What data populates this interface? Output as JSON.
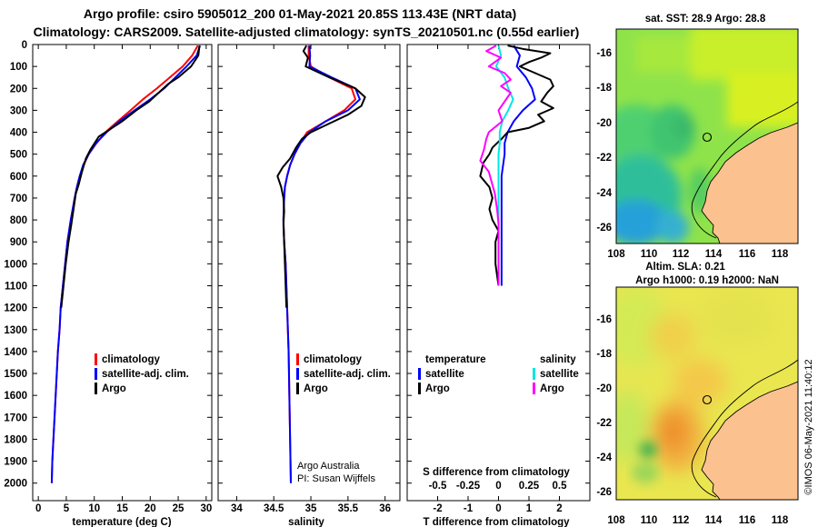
{
  "title": {
    "line1": "Argo profile: csiro 5905012_200 01-May-2021 20.85S 113.43E (NRT data)",
    "line2": "Climatology: CARS2009. Satellite-adjusted climatology: synTS_20210501.nc (0.55d earlier)"
  },
  "colors": {
    "clim": "#ff0000",
    "sat": "#0000ff",
    "argo": "#000000",
    "sal_sat": "#00e6e6",
    "sal_argo": "#ff00ff"
  },
  "chart_data": [
    {
      "type": "line",
      "id": "temperature",
      "xlabel": "temperature (deg C)",
      "ylabel": "",
      "xlim": [
        -1,
        31
      ],
      "ylim": [
        2080,
        0
      ],
      "x_ticks": [
        0,
        5,
        10,
        15,
        20,
        25,
        30
      ],
      "y_ticks": [
        0,
        100,
        200,
        300,
        400,
        500,
        600,
        700,
        800,
        900,
        1000,
        1100,
        1200,
        1300,
        1400,
        1500,
        1600,
        1700,
        1800,
        1900,
        2000
      ],
      "legend": [
        "climatology",
        "satellite-adj. clim.",
        "Argo"
      ],
      "series": [
        {
          "name": "climatology",
          "color": "#ff0000",
          "depth": [
            5,
            50,
            100,
            150,
            200,
            250,
            300,
            350,
            400,
            450,
            500,
            550,
            600,
            650,
            700,
            800,
            900,
            1000,
            1100,
            1200,
            1300,
            1400,
            1500,
            1600,
            1700,
            1800,
            1900,
            2000
          ],
          "values": [
            28.5,
            27.5,
            25.8,
            23.5,
            21.2,
            18.7,
            16.5,
            14.2,
            12.0,
            10.4,
            9.0,
            8.1,
            7.4,
            6.9,
            6.5,
            5.8,
            5.2,
            4.8,
            4.4,
            4.0,
            3.8,
            3.5,
            3.3,
            3.1,
            2.9,
            2.7,
            2.5,
            2.4
          ]
        },
        {
          "name": "satellite-adj. clim.",
          "color": "#0000ff",
          "depth": [
            5,
            50,
            100,
            150,
            200,
            250,
            300,
            350,
            400,
            450,
            500,
            550,
            600,
            650,
            700,
            800,
            900,
            1000,
            1100,
            1200,
            1300,
            1400,
            1500,
            1600,
            1700,
            1800,
            1900,
            2000
          ],
          "values": [
            28.9,
            28.3,
            26.5,
            24.5,
            22.5,
            20.0,
            17.2,
            14.5,
            12.2,
            10.3,
            9.0,
            8.0,
            7.4,
            6.9,
            6.5,
            5.8,
            5.2,
            4.8,
            4.4,
            4.0,
            3.8,
            3.5,
            3.3,
            3.1,
            2.9,
            2.7,
            2.5,
            2.4
          ]
        },
        {
          "name": "Argo",
          "color": "#000000",
          "depth": [
            5,
            50,
            100,
            150,
            180,
            220,
            260,
            300,
            350,
            400,
            420,
            480,
            520,
            580,
            640,
            680,
            750,
            820,
            900,
            1000,
            1100,
            1200
          ],
          "values": [
            28.8,
            28.6,
            27.3,
            25.0,
            23.2,
            21.5,
            19.8,
            17.5,
            15.0,
            12.0,
            10.8,
            9.3,
            8.5,
            7.8,
            7.2,
            6.7,
            6.3,
            5.9,
            5.4,
            4.9,
            4.5,
            4.1
          ]
        }
      ],
      "annotations": []
    },
    {
      "type": "line",
      "id": "salinity",
      "xlabel": "salinity",
      "xlim": [
        33.75,
        36.2
      ],
      "ylim": [
        2080,
        0
      ],
      "x_ticks": [
        34,
        34.5,
        35,
        35.5,
        36
      ],
      "legend": [
        "climatology",
        "satellite-adj. clim.",
        "Argo"
      ],
      "series": [
        {
          "name": "climatology",
          "color": "#ff0000",
          "depth": [
            5,
            50,
            100,
            150,
            200,
            250,
            300,
            350,
            400,
            450,
            500,
            550,
            600,
            650,
            700,
            800,
            900,
            1000,
            1200,
            1400,
            1600,
            1800,
            2000
          ],
          "values": [
            34.97,
            34.97,
            35.0,
            35.25,
            35.55,
            35.6,
            35.45,
            35.2,
            34.95,
            34.85,
            34.78,
            34.72,
            34.68,
            34.65,
            34.64,
            34.63,
            34.64,
            34.66,
            34.68,
            34.7,
            34.71,
            34.72,
            34.73
          ]
        },
        {
          "name": "satellite-adj. clim.",
          "color": "#0000ff",
          "depth": [
            5,
            50,
            100,
            150,
            200,
            250,
            300,
            350,
            400,
            450,
            500,
            550,
            600,
            650,
            700,
            800,
            900,
            1000,
            1200,
            1400,
            1600,
            1800,
            2000
          ],
          "values": [
            34.98,
            34.99,
            34.98,
            35.28,
            35.6,
            35.66,
            35.5,
            35.2,
            34.98,
            34.86,
            34.78,
            34.72,
            34.68,
            34.65,
            34.64,
            34.63,
            34.64,
            34.66,
            34.68,
            34.7,
            34.71,
            34.72,
            34.73
          ]
        },
        {
          "name": "Argo",
          "color": "#000000",
          "depth": [
            5,
            30,
            60,
            100,
            150,
            200,
            240,
            280,
            320,
            360,
            400,
            430,
            470,
            520,
            560,
            600,
            650,
            700,
            760,
            820,
            900,
            1000,
            1100,
            1200
          ],
          "values": [
            34.94,
            34.9,
            34.96,
            34.93,
            35.25,
            35.6,
            35.73,
            35.68,
            35.5,
            35.25,
            35.0,
            34.88,
            34.8,
            34.72,
            34.62,
            34.55,
            34.6,
            34.63,
            34.64,
            34.63,
            34.64,
            34.65,
            34.66,
            34.67
          ]
        }
      ],
      "annotations": [
        "Argo Australia",
        "PI: Susan Wijffels"
      ]
    },
    {
      "type": "line",
      "id": "differences",
      "xlabel": "T difference from climatology",
      "xlabel_top": "S difference from climatology",
      "xlim": [
        -3,
        3
      ],
      "ylim": [
        2080,
        0
      ],
      "x_ticks": [
        -2,
        -1,
        0,
        1,
        2
      ],
      "s_ticks": [
        "-0.5",
        "-0.25",
        "0",
        "0.25",
        "0.5"
      ],
      "legend_temperature_title": "temperature",
      "legend_salinity_title": "salinity",
      "legend_temperature": [
        "satellite",
        "Argo"
      ],
      "legend_salinity": [
        "satellite",
        "Argo"
      ],
      "series": [
        {
          "name": "T satellite",
          "color": "#0000ff",
          "depth": [
            5,
            50,
            100,
            150,
            200,
            250,
            300,
            350,
            400,
            450,
            500,
            550,
            600,
            650,
            700,
            800,
            900,
            1000,
            1100
          ],
          "values": [
            0.5,
            0.7,
            0.6,
            0.9,
            1.1,
            1.2,
            0.8,
            0.5,
            0.3,
            0.2,
            0.2,
            0.15,
            0.1,
            0.1,
            0.1,
            0.1,
            0.1,
            0.1,
            0.1
          ]
        },
        {
          "name": "T Argo",
          "color": "#000000",
          "depth": [
            5,
            20,
            40,
            60,
            80,
            100,
            130,
            160,
            190,
            220,
            260,
            290,
            320,
            350,
            380,
            400,
            430,
            470,
            500,
            540,
            600,
            650,
            700,
            750,
            800,
            850,
            900,
            1000,
            1100
          ],
          "values": [
            0.3,
            0.8,
            1.7,
            1.4,
            1.0,
            0.7,
            1.2,
            1.7,
            1.8,
            1.6,
            1.4,
            1.8,
            1.3,
            1.5,
            1.0,
            0.3,
            0.1,
            -0.2,
            -0.3,
            -0.5,
            -0.6,
            -0.3,
            -0.2,
            -0.3,
            -0.2,
            0.0,
            -0.1,
            -0.1,
            0.0
          ]
        },
        {
          "name": "S satellite",
          "color": "#00e6e6",
          "depth": [
            5,
            50,
            100,
            150,
            200,
            250,
            300,
            350,
            400,
            450,
            500,
            550,
            600,
            650,
            700,
            800,
            900,
            1000,
            1100
          ],
          "values": [
            0.0,
            0.02,
            -0.02,
            0.05,
            0.08,
            0.12,
            0.08,
            0.03,
            0.01,
            0.01,
            0.0,
            0.0,
            0.0,
            0.0,
            0.0,
            0.0,
            0.0,
            0.0,
            0.0
          ]
        },
        {
          "name": "S Argo",
          "color": "#ff00ff",
          "depth": [
            5,
            30,
            60,
            100,
            130,
            160,
            190,
            220,
            260,
            300,
            350,
            400,
            430,
            480,
            530,
            580,
            620,
            680,
            720,
            760,
            820,
            900,
            1000,
            1100
          ],
          "values": [
            -0.02,
            -0.1,
            0.02,
            -0.08,
            0.05,
            0.1,
            0.02,
            0.1,
            0.05,
            0.0,
            0.03,
            -0.08,
            -0.1,
            -0.12,
            -0.15,
            -0.08,
            -0.06,
            -0.03,
            -0.02,
            -0.01,
            0.0,
            0.0,
            0.0,
            0.0
          ]
        }
      ],
      "annotations": []
    }
  ],
  "maps": {
    "top": {
      "title": "sat. SST: 28.9 Argo: 28.8",
      "x_ticks": [
        "108",
        "110",
        "112",
        "114",
        "116",
        "118"
      ],
      "y_ticks": [
        "-16",
        "-18",
        "-20",
        "-22",
        "-24",
        "-26"
      ],
      "bottom_text": "Altim. SLA: 0.21"
    },
    "bottom": {
      "title": "Argo h1000: 0.19 h2000: NaN",
      "x_ticks": [
        "108",
        "110",
        "112",
        "114",
        "116",
        "118"
      ],
      "y_ticks": [
        "-16",
        "-18",
        "-20",
        "-22",
        "-24",
        "-26"
      ]
    }
  },
  "stamp": "©IMOS 06-May-2021 11:40:12"
}
